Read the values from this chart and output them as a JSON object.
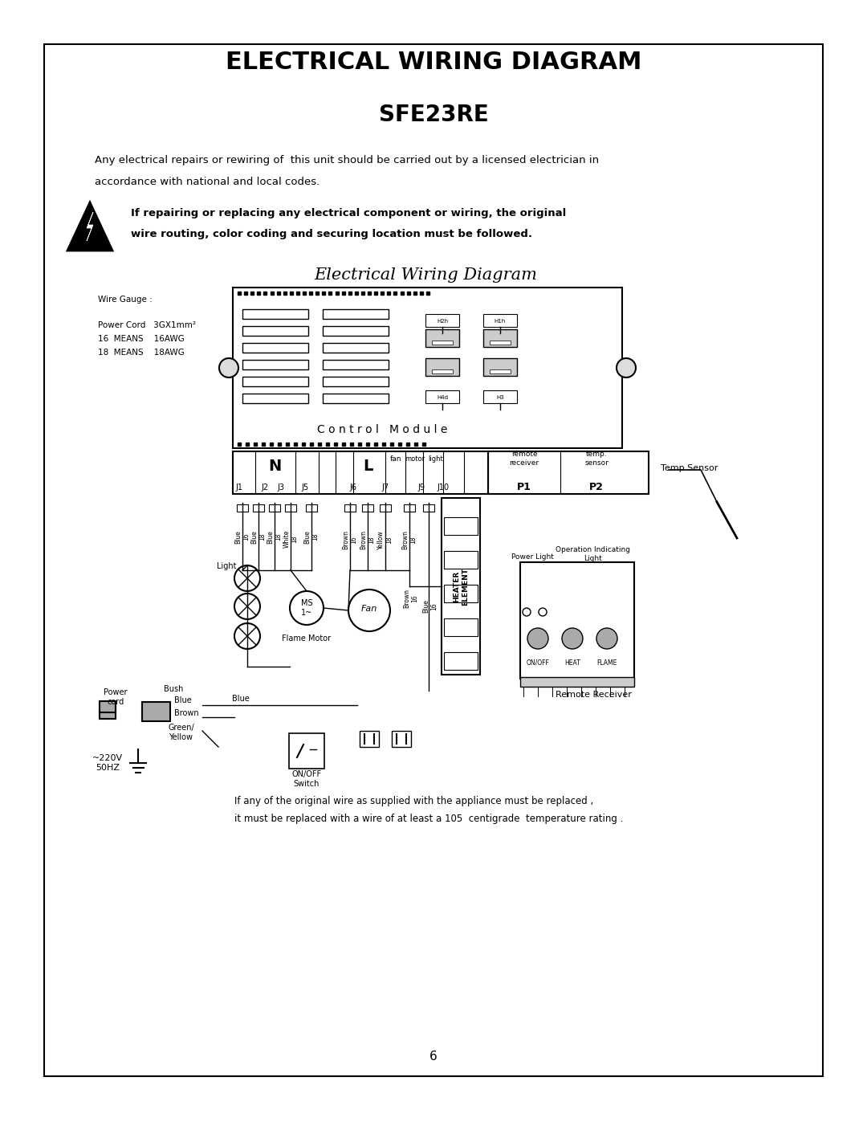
{
  "title": "ELECTRICAL WIRING DIAGRAM",
  "subtitle": "SFE23RE",
  "bg_color": "#ffffff",
  "border_color": "#000000",
  "text_color": "#000000",
  "page_number": "6",
  "warning_line1": "If repairing or replacing any electrical component or wiring, the original",
  "warning_line2": "wire routing, color coding and securing location must be followed.",
  "desc_line1": "Any electrical repairs or rewiring of  this unit should be carried out by a licensed electrician in",
  "desc_line2": "accordance with national and local codes.",
  "diagram_title": "Electrical Wiring Diagram",
  "wire_gauge_label": "Wire Gauge :",
  "power_cord_label": "Power Cord   3GX1mm²",
  "means_16": "16  MEANS    16AWG",
  "means_18": "18  MEANS    18AWG",
  "footer_line1": "If any of the original wire as supplied with the appliance must be replaced ,",
  "footer_line2": "it must be replaced with a wire of at least a 105  centigrade  temperature rating .",
  "control_module_text": "C o n t r o l   M o d u l e",
  "n_label": "N",
  "l_label": "L",
  "j_labels": [
    "J1",
    "J2",
    "J3",
    "J5",
    "J6",
    "J7",
    "J9",
    "J10"
  ],
  "fan_label": "fan",
  "motor_label": "motor",
  "light_label": "light",
  "p1_label": "P1",
  "p2_label": "P2",
  "remote_receiver_label": "remote\nreceiver",
  "temp_sensor_label": "temp.\nsensor",
  "temp_sensor_right": "Temp Sensor",
  "power_light_label": "Power Light",
  "op_indicating_light": "Operation Indicating\nLight",
  "remote_receiver_bottom": "Remote Receiver",
  "on_off_label": "ON/OFF",
  "heat_label": "HEAT",
  "flame_label": "FLAME",
  "fan_circle_label": "Fan",
  "ms_label": "MS\n1~",
  "flame_motor_label": "Flame Motor",
  "light_label2": "Light",
  "power_cord_bottom": "Power\ncord",
  "bush_label": "Bush",
  "blue_label": "Blue",
  "brown_label": "Brown",
  "green_yellow_label": "Green/\nYellow",
  "voltage_label": "~220V\n50HZ",
  "onoff_switch_label": "ON/OFF\nSwitch",
  "heater_element_label": "HEATER\nELEMENT",
  "wire_labels": [
    "Blue\n16",
    "Blue\n18",
    "Blue\n18",
    "White\n18",
    "Blue\n18",
    "Brown\n16",
    "Brown\n18",
    "Yellow\n18",
    "Brown\n18"
  ]
}
